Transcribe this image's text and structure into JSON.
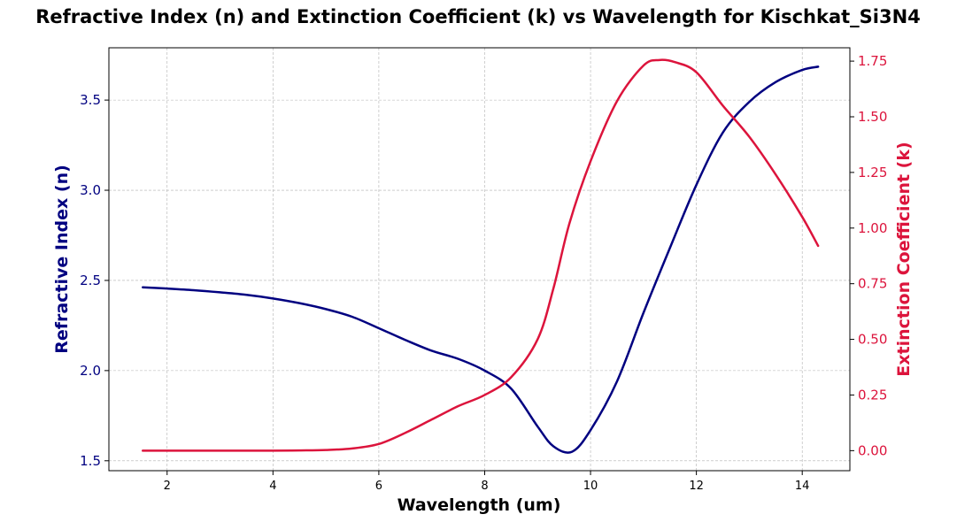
{
  "chart_data": {
    "type": "line",
    "title": "Refractive Index (n) and Extinction Coefficient (k) vs Wavelength for Kischkat_Si3N4",
    "xlabel": "Wavelength (um)",
    "ylabel_left": "Refractive Index (n)",
    "ylabel_right": "Extinction Coefficient (k)",
    "xlim": [
      0.9,
      14.9
    ],
    "ylim_left": [
      1.445,
      3.79
    ],
    "ylim_right": [
      -0.09,
      1.81
    ],
    "x_ticks": [
      "2",
      "4",
      "6",
      "8",
      "10",
      "12",
      "14"
    ],
    "y_left_ticks": [
      "1.5",
      "2.0",
      "2.5",
      "3.0",
      "3.5"
    ],
    "y_right_ticks": [
      "0.00",
      "0.25",
      "0.50",
      "0.75",
      "1.00",
      "1.25",
      "1.50",
      "1.75"
    ],
    "grid": true,
    "colors": {
      "n": "#000080",
      "k": "#dc143c"
    },
    "series": [
      {
        "axis": "left",
        "x": [
          1.54,
          2.0,
          2.5,
          3.0,
          3.5,
          4.0,
          4.5,
          5.0,
          5.5,
          6.0,
          6.5,
          7.0,
          7.5,
          8.0,
          8.5,
          9.0,
          9.3,
          9.65,
          10.0,
          10.5,
          11.0,
          11.5,
          12.0,
          12.5,
          13.0,
          13.5,
          14.0,
          14.3
        ],
        "y": [
          2.462,
          2.455,
          2.446,
          2.434,
          2.42,
          2.4,
          2.374,
          2.341,
          2.298,
          2.235,
          2.17,
          2.11,
          2.065,
          2.0,
          1.9,
          1.69,
          1.58,
          1.55,
          1.67,
          1.94,
          2.32,
          2.68,
          3.03,
          3.32,
          3.49,
          3.6,
          3.667,
          3.685
        ]
      },
      {
        "axis": "right",
        "x": [
          1.54,
          2.0,
          3.0,
          4.0,
          4.5,
          5.0,
          5.5,
          6.0,
          6.5,
          7.0,
          7.5,
          8.0,
          8.5,
          9.0,
          9.3,
          9.6,
          10.0,
          10.5,
          11.0,
          11.3,
          11.6,
          12.0,
          12.5,
          13.0,
          13.5,
          14.0,
          14.3
        ],
        "y": [
          0.0,
          0.0,
          0.0,
          0.0,
          0.001,
          0.003,
          0.01,
          0.03,
          0.08,
          0.14,
          0.2,
          0.25,
          0.33,
          0.5,
          0.73,
          1.02,
          1.3,
          1.57,
          1.73,
          1.755,
          1.745,
          1.7,
          1.55,
          1.41,
          1.24,
          1.05,
          0.92
        ]
      }
    ]
  }
}
